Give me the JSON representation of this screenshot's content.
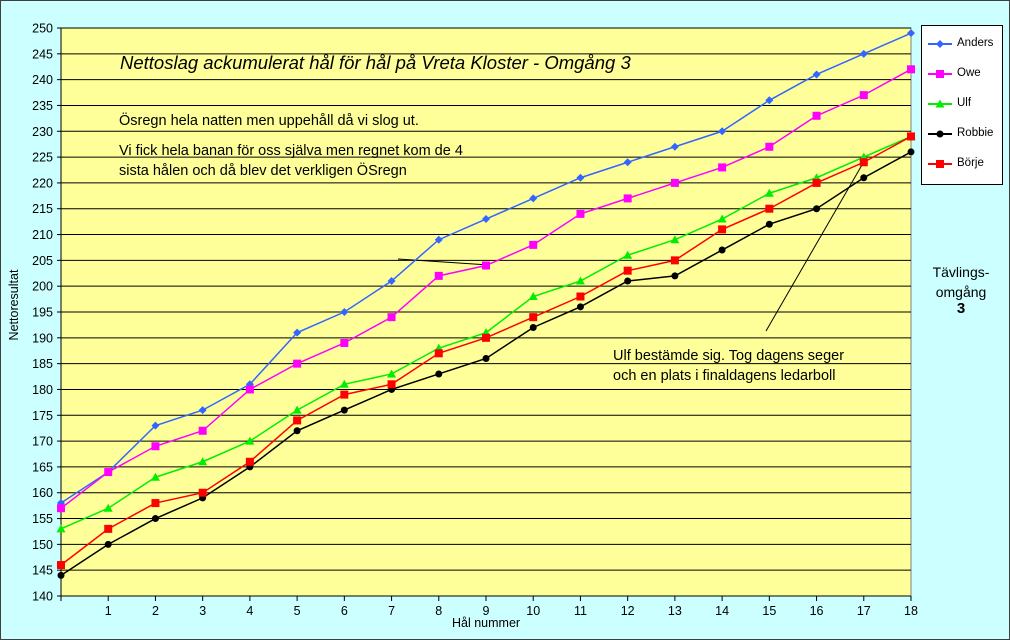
{
  "chart_data": {
    "type": "line",
    "title": "Nettoslag ackumulerat hål för hål på Vreta Kloster - Omgång 3",
    "xlabel": "Hål nummer",
    "ylabel": "Nettoresultat",
    "x": [
      0,
      1,
      2,
      3,
      4,
      5,
      6,
      7,
      8,
      9,
      10,
      11,
      12,
      13,
      14,
      15,
      16,
      17,
      18
    ],
    "x_tick_labels": [
      "",
      "1",
      "2",
      "3",
      "4",
      "5",
      "6",
      "7",
      "8",
      "9",
      "10",
      "11",
      "12",
      "13",
      "14",
      "15",
      "16",
      "17",
      "18"
    ],
    "xlim": [
      0,
      18
    ],
    "ylim": [
      140,
      250
    ],
    "y_ticks": [
      140,
      145,
      150,
      155,
      160,
      165,
      170,
      175,
      180,
      185,
      190,
      195,
      200,
      205,
      210,
      215,
      220,
      225,
      230,
      235,
      240,
      245,
      250
    ],
    "grid": "horizontal",
    "legend_position": "right",
    "plot_background": "#ffff99",
    "series": [
      {
        "name": "Anders",
        "color": "#3366ff",
        "marker": "diamond",
        "values": [
          158,
          164,
          173,
          176,
          181,
          191,
          195,
          201,
          209,
          213,
          217,
          221,
          224,
          227,
          230,
          236,
          241,
          245,
          249
        ]
      },
      {
        "name": "Owe",
        "color": "#ff00ff",
        "marker": "square",
        "values": [
          157,
          164,
          169,
          172,
          180,
          185,
          189,
          194,
          202,
          204,
          208,
          214,
          217,
          220,
          223,
          227,
          233,
          237,
          242
        ]
      },
      {
        "name": "Ulf",
        "color": "#00ee00",
        "marker": "triangle",
        "values": [
          153,
          157,
          163,
          166,
          170,
          176,
          181,
          183,
          188,
          191,
          198,
          201,
          206,
          209,
          213,
          218,
          221,
          225,
          229
        ]
      },
      {
        "name": "Robbie",
        "color": "#000000",
        "marker": "circle",
        "values": [
          144,
          150,
          155,
          159,
          165,
          172,
          176,
          180,
          183,
          186,
          192,
          196,
          201,
          202,
          207,
          212,
          215,
          221,
          226
        ]
      },
      {
        "name": "Börje",
        "color": "#ff0000",
        "marker": "square",
        "values": [
          146,
          153,
          158,
          160,
          166,
          174,
          179,
          181,
          187,
          190,
          194,
          198,
          203,
          205,
          211,
          215,
          220,
          224,
          229
        ]
      }
    ],
    "annotations": [
      {
        "text": "Ösregn hela natten men uppehåll då vi slog ut."
      },
      {
        "text": "Vi fick hela banan för oss själva men regnet kom de 4 sista hålen och då blev det verkligen ÖSregn",
        "line1": "Vi fick hela banan för oss själva men regnet kom de 4",
        "line2": "sista hålen och då blev det verkligen ÖSregn"
      },
      {
        "text": "Ulf bestämde sig. Tog dagens seger och en plats i finaldagens ledarboll",
        "line1": "Ulf bestämde sig. Tog dagens seger",
        "line2": "och en plats i finaldagens ledarboll"
      }
    ]
  },
  "side_note": {
    "label_line1": "Tävlings-",
    "label_line2": "omgång",
    "number": "3"
  }
}
